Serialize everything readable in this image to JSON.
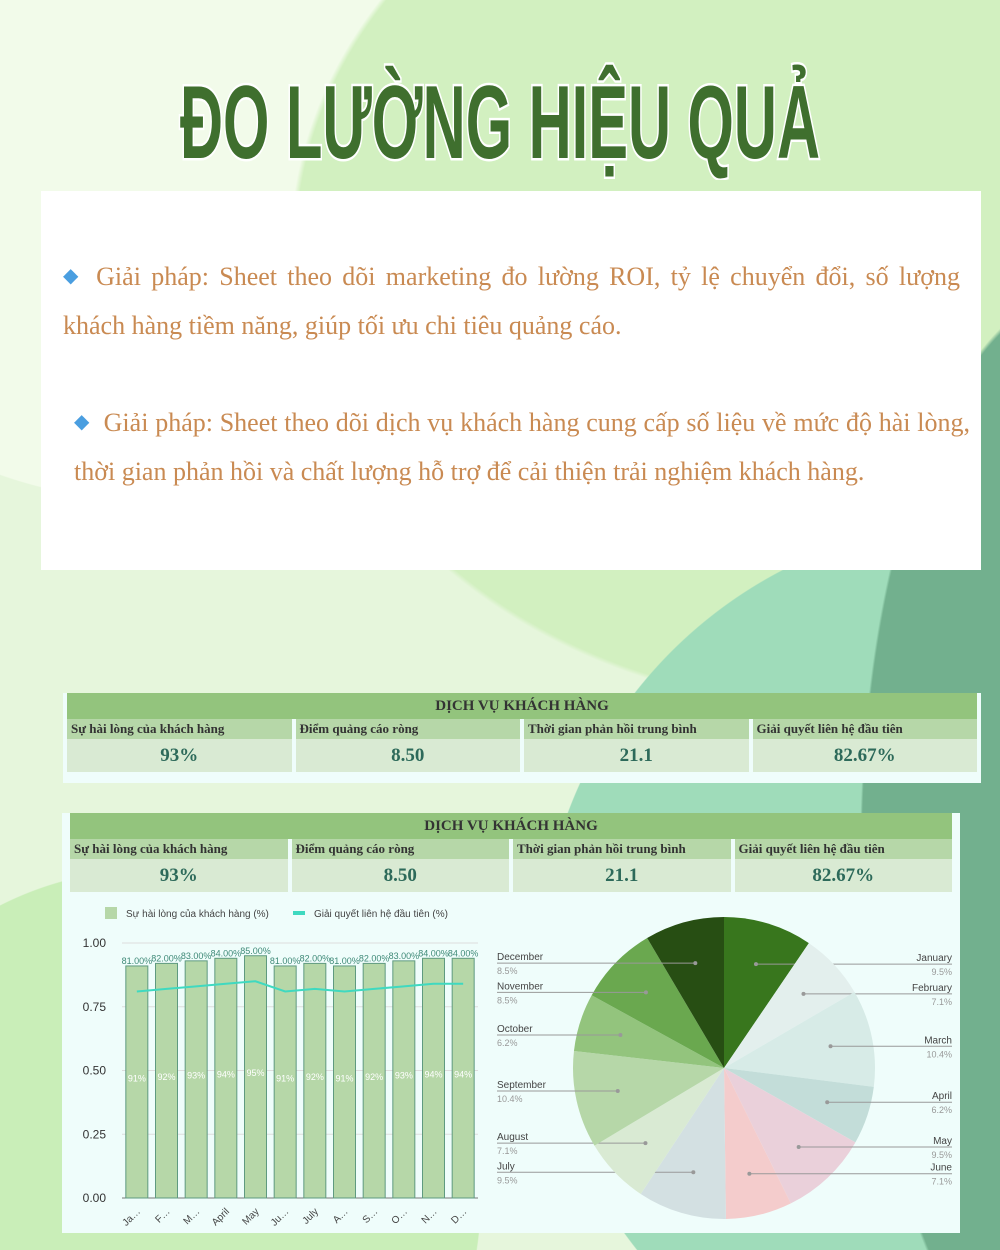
{
  "title": "ĐO LƯỜNG HIỆU QUẢ",
  "paragraphs": [
    "Giải pháp: Sheet theo dõi marketing đo lường ROI, tỷ lệ chuyển đổi, số lượng khách hàng tiềm năng, giúp tối ưu chi tiêu quảng cáo.",
    "Giải pháp: Sheet theo dõi dịch vụ khách hàng cung cấp số liệu về mức độ hài lòng, thời gian phản hồi và chất lượng hỗ trợ để cải thiện trải nghiệm khách hàng."
  ],
  "kpi": {
    "header": "DỊCH VỤ KHÁCH HÀNG",
    "labels": [
      "Sự hài lòng của khách hàng",
      "Điểm quảng cáo ròng",
      "Thời gian phản hồi trung bình",
      "Giải quyết liên hệ đầu tiên"
    ],
    "values": [
      "93%",
      "8.50",
      "21.1",
      "82.67%"
    ]
  },
  "chart_data": [
    {
      "type": "bar",
      "categories": [
        "Ja…",
        "F…",
        "M…",
        "April",
        "May",
        "Ju…",
        "July",
        "A…",
        "S…",
        "O…",
        "N…",
        "D…"
      ],
      "ylim": [
        0,
        1
      ],
      "yticks": [
        "0.00",
        "0.25",
        "0.50",
        "0.75",
        "1.00"
      ],
      "grid": true,
      "legend": "top",
      "series": [
        {
          "name": "Sự hài lòng của khách hàng (%)",
          "type": "bar",
          "color": "#b6d7a8",
          "values": [
            0.91,
            0.92,
            0.93,
            0.94,
            0.95,
            0.91,
            0.92,
            0.91,
            0.92,
            0.93,
            0.94,
            0.94
          ],
          "labels": [
            "91%",
            "92%",
            "93%",
            "94%",
            "95%",
            "91%",
            "92%",
            "91%",
            "92%",
            "93%",
            "94%",
            "94%"
          ]
        },
        {
          "name": "Giải quyết liên hệ đầu tiên (%)",
          "type": "line",
          "color": "#3fd9c0",
          "values": [
            0.81,
            0.82,
            0.83,
            0.84,
            0.85,
            0.81,
            0.82,
            0.81,
            0.82,
            0.83,
            0.84,
            0.84
          ],
          "labels": [
            "81.00%",
            "82.00%",
            "83.00%",
            "84.00%",
            "85.00%",
            "81.00%",
            "82.00%",
            "81.00%",
            "82.00%",
            "83.00%",
            "84.00%",
            "84.00%"
          ]
        }
      ]
    },
    {
      "type": "pie",
      "slices": [
        {
          "label": "January",
          "value": 9.5,
          "pct": "9.5%",
          "color": "#38761d"
        },
        {
          "label": "February",
          "value": 7.1,
          "pct": "7.1%",
          "color": "#e3efed"
        },
        {
          "label": "March",
          "value": 10.4,
          "pct": "10.4%",
          "color": "#d7ebe7"
        },
        {
          "label": "April",
          "value": 6.2,
          "pct": "6.2%",
          "color": "#c3ddd9"
        },
        {
          "label": "May",
          "value": 9.5,
          "pct": "9.5%",
          "color": "#ead0da"
        },
        {
          "label": "June",
          "value": 7.1,
          "pct": "7.1%",
          "color": "#f4cccc"
        },
        {
          "label": "July",
          "value": 9.5,
          "pct": "9.5%",
          "color": "#d3e0e2"
        },
        {
          "label": "August",
          "value": 7.1,
          "pct": "7.1%",
          "color": "#d9ead3"
        },
        {
          "label": "September",
          "value": 10.4,
          "pct": "10.4%",
          "color": "#b6d7a8"
        },
        {
          "label": "October",
          "value": 6.2,
          "pct": "6.2%",
          "color": "#93c47d"
        },
        {
          "label": "November",
          "value": 8.5,
          "pct": "8.5%",
          "color": "#6aa84f"
        },
        {
          "label": "December",
          "value": 8.5,
          "pct": "8.5%",
          "color": "#274e13"
        }
      ]
    }
  ]
}
